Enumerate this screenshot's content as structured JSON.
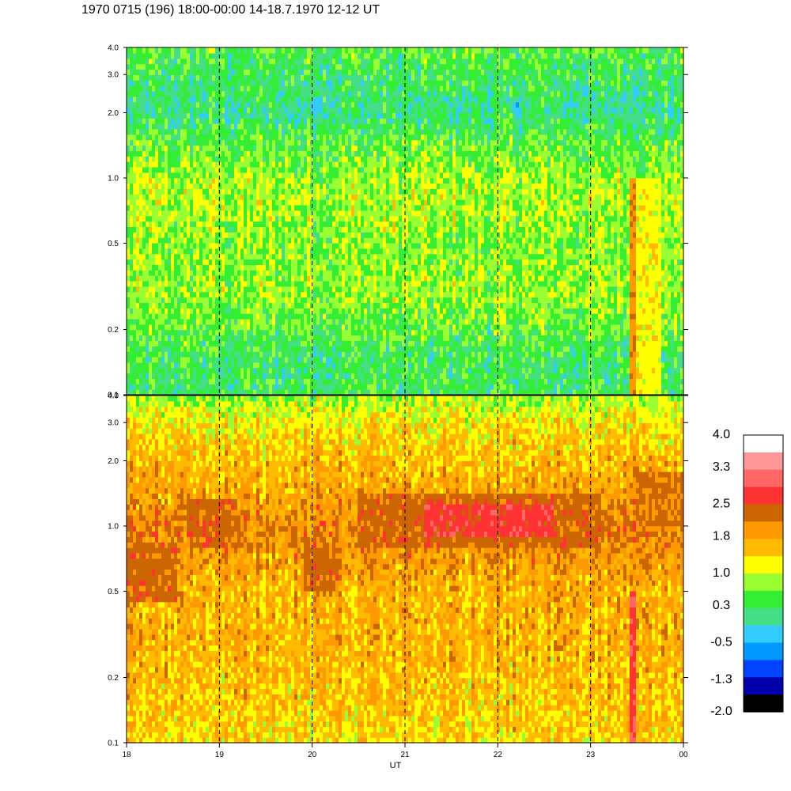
{
  "title": "1970 0715 (196) 18:00-00:00 14-18.7.1970  12-12 UT",
  "chart_data": {
    "type": "heatmap",
    "title": "1970 0715 (196) 18:00-00:00 14-18.7.1970  12-12 UT",
    "xlabel": "UT",
    "ylabel": "",
    "x_range": [
      18,
      24
    ],
    "x_tick_labels": [
      "18",
      "19",
      "20",
      "21",
      "22",
      "23",
      "00"
    ],
    "y_scale": "log",
    "y_range": [
      0.1,
      4.0
    ],
    "y_tick_values": [
      0.1,
      0.2,
      0.5,
      1.0,
      2.0,
      3.0,
      4.0
    ],
    "y_tick_labels": [
      "0.1",
      "0.2",
      "0.5",
      "1.0",
      "2.0",
      "3.0",
      "4.0"
    ],
    "grid": "dashed vertical lines at each hour",
    "panels": [
      {
        "name": "upper",
        "dominant_level_by_frequency": [
          {
            "y": 0.1,
            "level": 0.3
          },
          {
            "y": 0.15,
            "level": 0.3
          },
          {
            "y": 0.2,
            "level": 0.5
          },
          {
            "y": 0.3,
            "level": 0.8
          },
          {
            "y": 0.5,
            "level": 0.7
          },
          {
            "y": 0.8,
            "level": 0.9
          },
          {
            "y": 1.0,
            "level": 0.8
          },
          {
            "y": 1.5,
            "level": 0.5
          },
          {
            "y": 2.0,
            "level": 0.1
          },
          {
            "y": 3.0,
            "level": 0.3
          },
          {
            "y": 4.0,
            "level": 0.5
          }
        ],
        "features": [
          {
            "x": [
              23.43,
              23.5
            ],
            "y": [
              0.1,
              1.0
            ],
            "level": 2.0
          },
          {
            "x": [
              23.5,
              23.75
            ],
            "y": [
              0.1,
              1.0
            ],
            "level": 1.2
          }
        ]
      },
      {
        "name": "lower",
        "dominant_level_by_frequency": [
          {
            "y": 0.1,
            "level": 1.4
          },
          {
            "y": 0.2,
            "level": 1.6
          },
          {
            "y": 0.3,
            "level": 1.7
          },
          {
            "y": 0.5,
            "level": 1.7
          },
          {
            "y": 0.7,
            "level": 1.9
          },
          {
            "y": 1.0,
            "level": 2.1
          },
          {
            "y": 1.5,
            "level": 1.8
          },
          {
            "y": 2.0,
            "level": 1.6
          },
          {
            "y": 3.0,
            "level": 1.3
          },
          {
            "y": 4.0,
            "level": 0.8
          }
        ],
        "features": [
          {
            "x": [
              18.0,
              18.55
            ],
            "y": [
              0.45,
              0.85
            ],
            "level": 2.3
          },
          {
            "x": [
              18.65,
              19.2
            ],
            "y": [
              0.8,
              1.3
            ],
            "level": 2.3
          },
          {
            "x": [
              19.9,
              20.3
            ],
            "y": [
              0.5,
              0.85
            ],
            "level": 2.3
          },
          {
            "x": [
              20.5,
              23.1
            ],
            "y": [
              0.8,
              1.4
            ],
            "level": 2.3
          },
          {
            "x": [
              21.2,
              22.6
            ],
            "y": [
              0.9,
              1.25
            ],
            "level": 2.7
          },
          {
            "x": [
              23.43,
              23.5
            ],
            "y": [
              0.1,
              0.5
            ],
            "level": 2.8
          },
          {
            "x": [
              23.5,
              24.0
            ],
            "y": [
              1.0,
              1.8
            ],
            "level": 2.2
          }
        ]
      }
    ],
    "colorbar": {
      "labels": [
        "4.0",
        "3.3",
        "2.5",
        "1.8",
        "1.0",
        "0.3",
        "-0.5",
        "-1.3",
        "-2.0"
      ],
      "label_values": [
        4.0,
        3.3,
        2.5,
        1.8,
        1.0,
        0.3,
        -0.5,
        -1.3,
        -2.0
      ],
      "colors_top_to_bottom": [
        "#ffffff",
        "#ff9999",
        "#ff6666",
        "#ff3333",
        "#cc6600",
        "#ff9900",
        "#ffbb00",
        "#ffff00",
        "#99ff33",
        "#33ee33",
        "#44dd88",
        "#33ccff",
        "#0099ff",
        "#0044ff",
        "#0000aa",
        "#000000"
      ],
      "range": [
        -2.0,
        4.0
      ]
    }
  }
}
